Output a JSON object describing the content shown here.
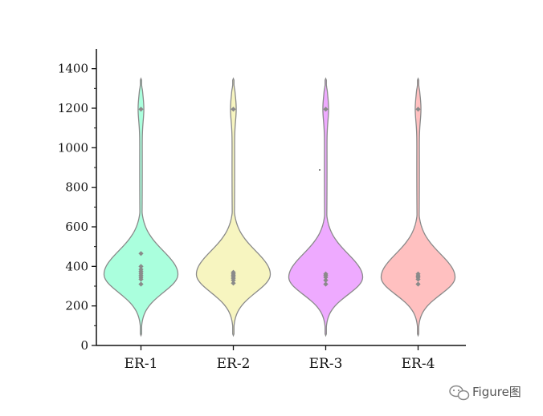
{
  "chart_data": {
    "type": "violin",
    "title": "",
    "xlabel": "",
    "ylabel": "",
    "ylim": [
      0,
      1500
    ],
    "y_ticks": [
      0,
      200,
      400,
      600,
      800,
      1000,
      1200,
      1400
    ],
    "y_tick_labels": [
      "0",
      "200",
      "400",
      "600",
      "800",
      "1000",
      "1200",
      "1400"
    ],
    "categories": [
      "ER-1",
      "ER-2",
      "ER-3",
      "ER-4"
    ],
    "grid": false,
    "legend": "none",
    "series": [
      {
        "category": "ER-1",
        "color": "#aaffdd",
        "range": [
          50,
          1350
        ],
        "mode": 360,
        "points": [
          465,
          400,
          385,
          375,
          365,
          355,
          345,
          335,
          310,
          1195
        ]
      },
      {
        "category": "ER-2",
        "color": "#f7f5c0",
        "range": [
          50,
          1350
        ],
        "mode": 360,
        "points": [
          370,
          362,
          355,
          348,
          340,
          330,
          315,
          1195
        ]
      },
      {
        "category": "ER-3",
        "color": "#eeaaff",
        "range": [
          50,
          1350
        ],
        "mode": 345,
        "points": [
          362,
          355,
          345,
          330,
          310,
          1195
        ]
      },
      {
        "category": "ER-4",
        "color": "#ffc0c0",
        "range": [
          50,
          1350
        ],
        "mode": 345,
        "points": [
          362,
          352,
          345,
          335,
          310,
          1195
        ]
      }
    ],
    "outline_color": "#8a8a8a",
    "point_color": "#8a8a8a"
  },
  "watermark": {
    "text": "Figure图",
    "icon": "wechat-icon"
  }
}
